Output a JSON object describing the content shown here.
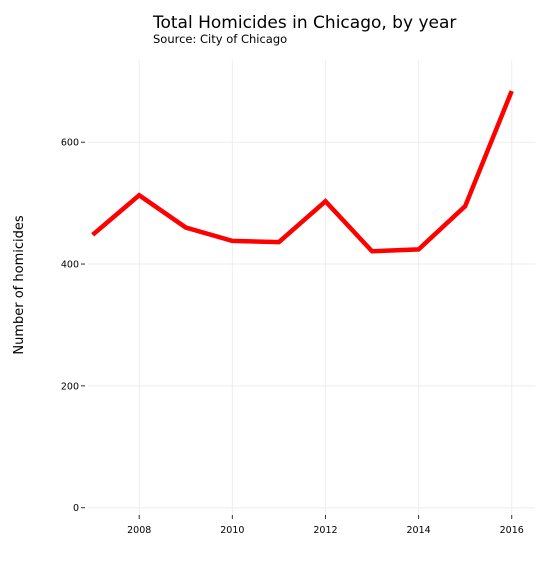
{
  "chart_data": {
    "type": "line",
    "title": "Total Homicides in Chicago, by year",
    "subtitle": "Source: City of Chicago",
    "xlabel": "",
    "ylabel": "Number of homicides",
    "x": [
      2007,
      2008,
      2009,
      2010,
      2011,
      2012,
      2013,
      2014,
      2015,
      2016
    ],
    "series": [
      {
        "values": [
          448,
          513,
          460,
          438,
          436,
          503,
          421,
          424,
          495,
          684
        ],
        "color": "#ff0000"
      }
    ],
    "xlim": [
      2006.9,
      2016.5
    ],
    "ylim": [
      -12,
      735
    ],
    "xticks": [
      2008,
      2010,
      2012,
      2014,
      2016
    ],
    "yticks": [
      0,
      200,
      400,
      600
    ],
    "grid": true,
    "legend": "none"
  }
}
